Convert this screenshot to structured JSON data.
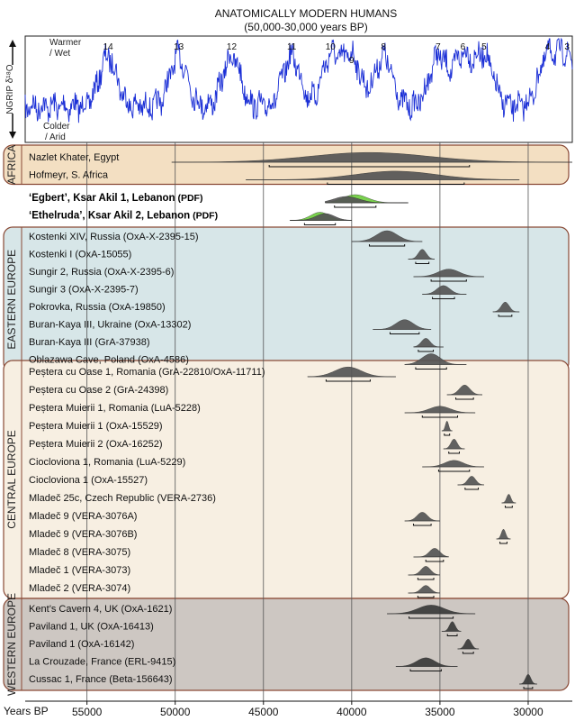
{
  "chart_data": {
    "type": "table",
    "title": "ANATOMICALLY MODERN HUMANS",
    "subtitle": "(50,000-30,000 years BP)",
    "xlabel": "Years BP",
    "xlim": [
      58500,
      27500
    ],
    "x_reversed": true,
    "x_ticks": [
      55000,
      50000,
      45000,
      40000,
      35000,
      30000
    ],
    "x_tick_labels": [
      "55000",
      "50000",
      "45000",
      "40000",
      "35000",
      "30000"
    ],
    "climate_record": {
      "ylabel": "NGRIP δ¹⁸O",
      "warm_label": [
        "Warmer",
        "/ Wet"
      ],
      "cold_label": [
        "Colder",
        "/ Arid"
      ],
      "interstadials": [
        {
          "n": "14",
          "x": 53800
        },
        {
          "n": "13",
          "x": 49800
        },
        {
          "n": "12",
          "x": 46800
        },
        {
          "n": "11",
          "x": 43400
        },
        {
          "n": "10",
          "x": 41200
        },
        {
          "n": "9",
          "x": 40000
        },
        {
          "n": "8",
          "x": 38200
        },
        {
          "n": "7",
          "x": 35100
        },
        {
          "n": "6",
          "x": 33700
        },
        {
          "n": "5",
          "x": 32500
        },
        {
          "n": "4",
          "x": 28900
        },
        {
          "n": "3",
          "x": 27800
        }
      ]
    },
    "regions": [
      {
        "name": "AFRICA",
        "color": "#f3dfc2",
        "border": "#8a4a36",
        "samples": [
          {
            "label": "Nazlet Khater, Egypt",
            "range": [
              50200,
              27500
            ],
            "peak": 39000,
            "ht": 0.9,
            "fill": "#555555"
          },
          {
            "label": "Hofmeyr, S. Africa",
            "range": [
              46000,
              30500
            ],
            "peak": 37500,
            "ht": 0.8,
            "fill": "#555555"
          }
        ]
      },
      {
        "name": "",
        "color": "#ffffff",
        "border": "#ffffff",
        "samples": [
          {
            "label": "‘Egbert’, Ksar Akil 1, Lebanon",
            "suffix": " (PDF)",
            "bold": true,
            "range": [
              41500,
              36800
            ],
            "peak": 39800,
            "ht": 0.9,
            "fill": "#6fcf3f",
            "second": {
              "peak": 40300,
              "ht": 0.7,
              "fill": "#555555"
            }
          },
          {
            "label": "‘Ethelruda’, Ksar Akil 2, Lebanon",
            "suffix": " (PDF)",
            "bold": true,
            "range": [
              43500,
              40000
            ],
            "peak": 41800,
            "ht": 0.9,
            "fill": "#6fcf3f",
            "second": {
              "peak": 41500,
              "ht": 0.75,
              "fill": "#555555"
            }
          }
        ]
      },
      {
        "name": "EASTERN EUROPE",
        "color": "#d7e6e8",
        "border": "#8a4a36",
        "samples": [
          {
            "label": "Kostenki XIV, Russia (OxA-X-2395-15)",
            "range": [
              40000,
              36000
            ],
            "peak": 38000,
            "ht": 1.0,
            "fill": "#555555"
          },
          {
            "label": "Kostenki I (OxA-15055)",
            "range": [
              36800,
              35300
            ],
            "peak": 36000,
            "ht": 0.9,
            "fill": "#555555"
          },
          {
            "label": "Sungir 2, Russia (OxA-X-2395-6)",
            "range": [
              36500,
              32500
            ],
            "peak": 34500,
            "ht": 0.7,
            "fill": "#555555"
          },
          {
            "label": "Sungir 3 (OxA-X-2395-7)",
            "range": [
              36000,
              33500
            ],
            "peak": 34800,
            "ht": 0.8,
            "fill": "#555555"
          },
          {
            "label": "Pokrovka, Russia (OxA-19850)",
            "range": [
              32000,
              30500
            ],
            "peak": 31300,
            "ht": 0.9,
            "fill": "#555555"
          },
          {
            "label": "Buran-Kaya III, Ukraine (OxA-13302)",
            "range": [
              38800,
              35500
            ],
            "peak": 37000,
            "ht": 0.9,
            "fill": "#555555"
          },
          {
            "label": "Buran-Kaya III  (GrA-37938)",
            "range": [
              36500,
              34800
            ],
            "peak": 35800,
            "ht": 0.8,
            "fill": "#555555"
          },
          {
            "label": "Oblazawa Cave, Poland (OxA-4586)",
            "range": [
              37000,
              33500
            ],
            "peak": 35500,
            "ht": 1.0,
            "fill": "#555555"
          }
        ]
      },
      {
        "name": "CENTRAL EUROPE",
        "color": "#f7efe2",
        "border": "#8a4a36",
        "samples": [
          {
            "label": "Peștera cu Oase 1, Romania (GrA-22810/OxA-11711)",
            "range": [
              42500,
              37500
            ],
            "peak": 40200,
            "ht": 0.9,
            "fill": "#555555"
          },
          {
            "label": "Peștera cu Oase 2 (GrA-24398)",
            "range": [
              34600,
              32600
            ],
            "peak": 33600,
            "ht": 0.9,
            "fill": "#555555"
          },
          {
            "label": "Peștera Muierii 1, Romania (LuA-5228)",
            "range": [
              37000,
              33000
            ],
            "peak": 35000,
            "ht": 0.6,
            "fill": "#555555"
          },
          {
            "label": "Peștera Muierii 1 (OxA-15529)",
            "range": [
              34900,
              34300
            ],
            "peak": 34600,
            "ht": 0.9,
            "fill": "#555555"
          },
          {
            "label": "Peștera Muierii 2 (OxA-16252)",
            "range": [
              34800,
              33600
            ],
            "peak": 34200,
            "ht": 0.9,
            "fill": "#555555"
          },
          {
            "label": "Ciocloviona 1, Romania (LuA-5229)",
            "range": [
              36000,
              32500
            ],
            "peak": 34200,
            "ht": 0.6,
            "fill": "#555555"
          },
          {
            "label": "Ciocloviona 1 (OxA-15527)",
            "range": [
              34000,
              32500
            ],
            "peak": 33200,
            "ht": 0.8,
            "fill": "#555555"
          },
          {
            "label": "Mladeč 25c, Czech Republic (VERA-2736)",
            "range": [
              31500,
              30700
            ],
            "peak": 31100,
            "ht": 0.8,
            "fill": "#555555"
          },
          {
            "label": "Mladeč 9 (VERA-3076A)",
            "range": [
              37000,
              35000
            ],
            "peak": 36000,
            "ht": 0.8,
            "fill": "#555555"
          },
          {
            "label": "Mladeč 9 (VERA-3076B)",
            "range": [
              31800,
              31000
            ],
            "peak": 31400,
            "ht": 0.9,
            "fill": "#555555"
          },
          {
            "label": "Mladeč 8 (VERA-3075)",
            "range": [
              36500,
              34500
            ],
            "peak": 35300,
            "ht": 0.8,
            "fill": "#555555"
          },
          {
            "label": "Mladeč 1 (VERA-3073)",
            "range": [
              36800,
              35000
            ],
            "peak": 35800,
            "ht": 0.8,
            "fill": "#555555"
          },
          {
            "label": "Mladeč 2 (VERA-3074)",
            "range": [
              36800,
              35000
            ],
            "peak": 35800,
            "ht": 0.7,
            "fill": "#555555"
          }
        ]
      },
      {
        "name": "WESTERN EUROPE",
        "color": "#cdc7c2",
        "border": "#8a4a36",
        "samples": [
          {
            "label": "Kent’s Cavern 4, UK (OxA-1621)",
            "range": [
              38000,
              33000
            ],
            "peak": 35500,
            "ht": 0.8,
            "fill": "#3a3a3a"
          },
          {
            "label": "Paviland 1, UK (OxA-16413)",
            "range": [
              34900,
              33800
            ],
            "peak": 34300,
            "ht": 0.9,
            "fill": "#3a3a3a"
          },
          {
            "label": "Paviland 1 (OxA-16142)",
            "range": [
              34000,
              32800
            ],
            "peak": 33400,
            "ht": 0.9,
            "fill": "#3a3a3a"
          },
          {
            "label": "La Crouzade, France (ERL-9415)",
            "range": [
              37500,
              34000
            ],
            "peak": 35800,
            "ht": 0.8,
            "fill": "#3a3a3a"
          },
          {
            "label": "Cussac 1, France (Beta-156643)",
            "range": [
              30500,
              29500
            ],
            "peak": 30000,
            "ht": 0.9,
            "fill": "#3a3a3a"
          }
        ]
      }
    ]
  }
}
